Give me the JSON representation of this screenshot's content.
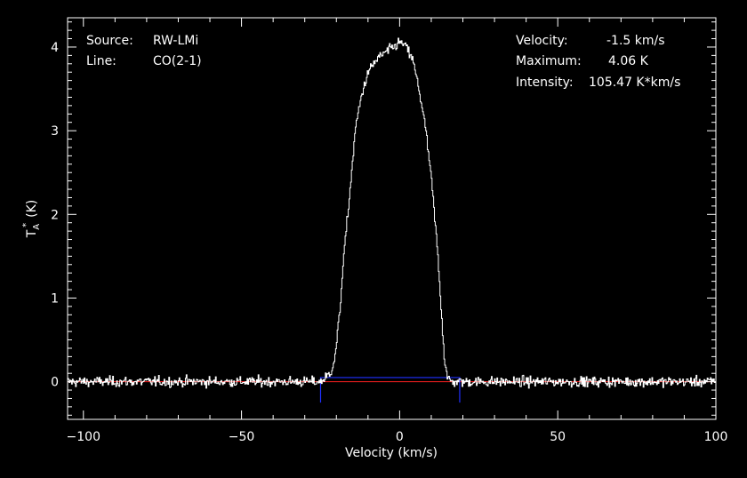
{
  "chart_data": {
    "type": "line",
    "title": "",
    "xlabel": "Velocity (km/s)",
    "ylabel": "T",
    "ylabel_sub": "A",
    "ylabel_sup": "*",
    "ylabel_unit": "(K)",
    "xlim": [
      -105,
      100
    ],
    "ylim": [
      -0.45,
      4.35
    ],
    "xticks": [
      -100,
      -50,
      0,
      50,
      100
    ],
    "yticks": [
      0,
      1,
      2,
      3,
      4
    ],
    "grid": false,
    "colors": {
      "background": "#000000",
      "spectrum": "#ffffff",
      "baseline": "#ff2020",
      "window": "#2030ff"
    },
    "annotations_left": [
      {
        "key": "Source:",
        "value": "RW-LMi"
      },
      {
        "key": "Line:",
        "value": "CO(2-1)"
      }
    ],
    "annotations_right": [
      {
        "key": "Velocity:",
        "value": "-1.5 km/s"
      },
      {
        "key": "Maximum:",
        "value": "4.06 K"
      },
      {
        "key": "Intensity:",
        "value": "105.47 K*km/s"
      }
    ],
    "series": [
      {
        "x": [
          -105,
          -25,
          -22,
          -20.5,
          -19,
          -18,
          -16,
          -14,
          -12,
          -10,
          -8,
          -6,
          -4,
          -2,
          0,
          2,
          4,
          6,
          8,
          10,
          12,
          13,
          14,
          15,
          16,
          20,
          100
        ],
        "y": [
          0,
          0,
          0.1,
          0.3,
          0.85,
          1.4,
          2.2,
          3.05,
          3.45,
          3.7,
          3.82,
          3.9,
          3.95,
          4.0,
          4.06,
          4.0,
          3.85,
          3.5,
          3.05,
          2.4,
          1.5,
          0.9,
          0.3,
          0.05,
          0,
          0,
          0
        ],
        "noise_rms": 0.03
      }
    ],
    "baseline_y": 0,
    "window": {
      "x": [
        -25,
        19
      ],
      "y": 0.05,
      "y_drop": -0.25
    }
  }
}
